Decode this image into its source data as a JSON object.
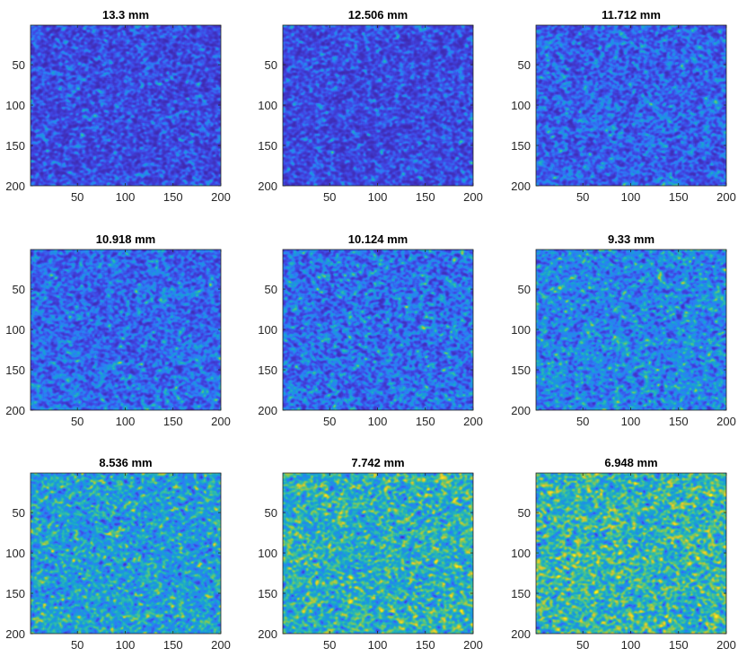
{
  "figure": {
    "background": "#ffffff"
  },
  "colormap": [
    "#3e26a8",
    "#4145e3",
    "#2c7ef6",
    "#179fd6",
    "#2fbea8",
    "#8cc84e",
    "#e6c431",
    "#f9fb0e"
  ],
  "chart_data": [
    {
      "type": "heatmap",
      "title": "13.3 mm",
      "xlim": [
        1,
        200
      ],
      "ylim": [
        1,
        200
      ],
      "xticks": [
        50,
        100,
        150,
        200
      ],
      "yticks": [
        50,
        100,
        150,
        200
      ],
      "intensity": 0.1
    },
    {
      "type": "heatmap",
      "title": "12.506 mm",
      "xlim": [
        1,
        200
      ],
      "ylim": [
        1,
        200
      ],
      "xticks": [
        50,
        100,
        150,
        200
      ],
      "yticks": [
        50,
        100,
        150,
        200
      ],
      "intensity": 0.17
    },
    {
      "type": "heatmap",
      "title": "11.712 mm",
      "xlim": [
        1,
        200
      ],
      "ylim": [
        1,
        200
      ],
      "xticks": [
        50,
        100,
        150,
        200
      ],
      "yticks": [
        50,
        100,
        150,
        200
      ],
      "intensity": 0.24
    },
    {
      "type": "heatmap",
      "title": "10.918 mm",
      "xlim": [
        1,
        200
      ],
      "ylim": [
        1,
        200
      ],
      "xticks": [
        50,
        100,
        150,
        200
      ],
      "yticks": [
        50,
        100,
        150,
        200
      ],
      "intensity": 0.32
    },
    {
      "type": "heatmap",
      "title": "10.124 mm",
      "xlim": [
        1,
        200
      ],
      "ylim": [
        1,
        200
      ],
      "xticks": [
        50,
        100,
        150,
        200
      ],
      "yticks": [
        50,
        100,
        150,
        200
      ],
      "intensity": 0.4
    },
    {
      "type": "heatmap",
      "title": "9.33 mm",
      "xlim": [
        1,
        200
      ],
      "ylim": [
        1,
        200
      ],
      "xticks": [
        50,
        100,
        150,
        200
      ],
      "yticks": [
        50,
        100,
        150,
        200
      ],
      "intensity": 0.48
    },
    {
      "type": "heatmap",
      "title": "8.536 mm",
      "xlim": [
        1,
        200
      ],
      "ylim": [
        1,
        200
      ],
      "xticks": [
        50,
        100,
        150,
        200
      ],
      "yticks": [
        50,
        100,
        150,
        200
      ],
      "intensity": 0.58
    },
    {
      "type": "heatmap",
      "title": "7.742 mm",
      "xlim": [
        1,
        200
      ],
      "ylim": [
        1,
        200
      ],
      "xticks": [
        50,
        100,
        150,
        200
      ],
      "yticks": [
        50,
        100,
        150,
        200
      ],
      "intensity": 0.66
    },
    {
      "type": "heatmap",
      "title": "6.948 mm",
      "xlim": [
        1,
        200
      ],
      "ylim": [
        1,
        200
      ],
      "xticks": [
        50,
        100,
        150,
        200
      ],
      "yticks": [
        50,
        100,
        150,
        200
      ],
      "intensity": 0.75
    }
  ]
}
